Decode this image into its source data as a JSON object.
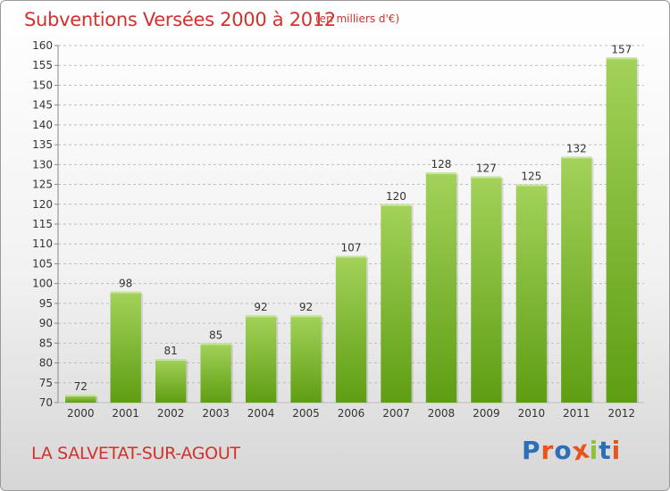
{
  "header": {
    "title": "Subventions Versées 2000 à 2012",
    "unit": "(en milliers d'€)"
  },
  "footer": {
    "commune": "LA SALVETAT-SUR-AGOUT",
    "logo_text": "Proxiti",
    "logo_colors": [
      "#2a6fb7",
      "#e8541c",
      "#2a6fb7",
      "#e8541c",
      "#8fc23a",
      "#2a6fb7",
      "#e8541c"
    ]
  },
  "colors": {
    "title": "#d2312c",
    "bar_light": "#a3d25a",
    "bar_dark": "#5e9e12",
    "grid": "#bdbdbd",
    "axis_text": "#333333"
  },
  "chart_data": {
    "type": "bar",
    "categories": [
      "2000",
      "2001",
      "2002",
      "2003",
      "2004",
      "2005",
      "2006",
      "2007",
      "2008",
      "2009",
      "2010",
      "2011",
      "2012"
    ],
    "values": [
      72,
      98,
      81,
      85,
      92,
      92,
      107,
      120,
      128,
      127,
      125,
      132,
      157
    ],
    "title": "Subventions Versées 2000 à 2012",
    "subtitle": "(en milliers d'€)",
    "xlabel": "",
    "ylabel": "",
    "ylim": [
      70,
      160
    ],
    "ytick_step": 5,
    "grid": true,
    "legend": "none"
  }
}
